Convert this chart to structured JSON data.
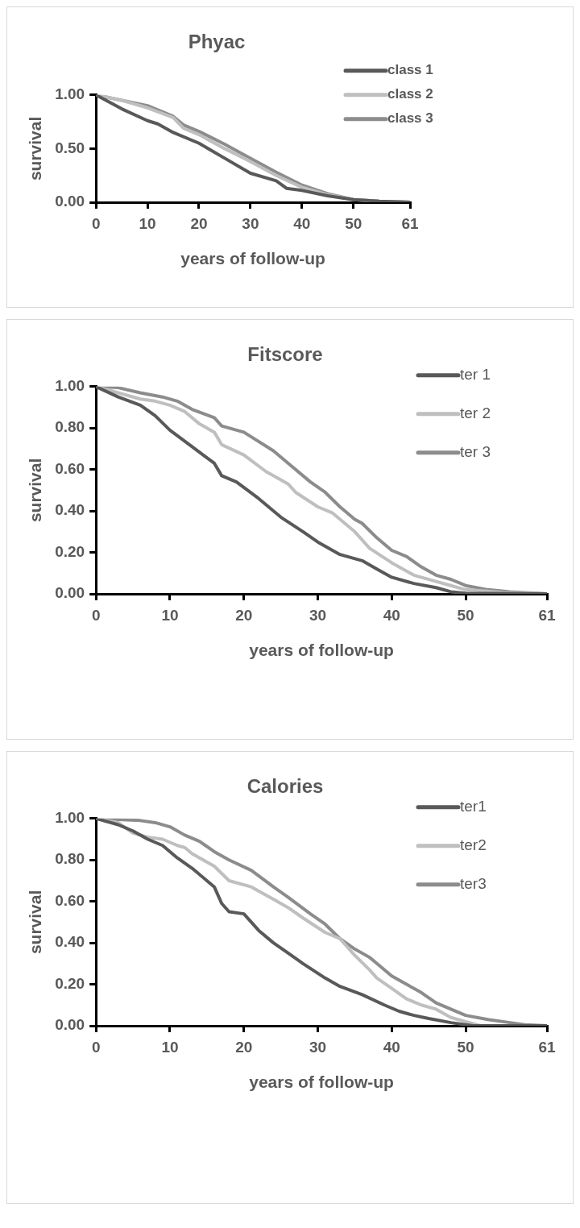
{
  "chart_data": [
    {
      "type": "line",
      "title": "Phyac",
      "xlabel": "years of follow-up",
      "ylabel": "survival",
      "xlim": [
        0,
        61
      ],
      "xticks": [
        0,
        10,
        20,
        30,
        40,
        50,
        61
      ],
      "ylim": [
        0,
        1
      ],
      "yticks": [
        {
          "value": 0,
          "label": "0.00"
        },
        {
          "value": 0.5,
          "label": "0.50"
        },
        {
          "value": 1,
          "label": "1.00"
        }
      ],
      "grid": false,
      "legend": "top right",
      "marker": "none",
      "series": [
        {
          "name": "class 1",
          "color": "#595959",
          "x": [
            0,
            5,
            10,
            12,
            15,
            20,
            25,
            30,
            35,
            37,
            40,
            45,
            50,
            55,
            61
          ],
          "values": [
            1.0,
            0.87,
            0.76,
            0.73,
            0.65,
            0.55,
            0.41,
            0.27,
            0.2,
            0.13,
            0.11,
            0.06,
            0.025,
            0.01,
            0.0
          ]
        },
        {
          "name": "class 2",
          "color": "#bfbfbf",
          "x": [
            0,
            5,
            10,
            15,
            17,
            20,
            25,
            30,
            35,
            40,
            45,
            50,
            55,
            61
          ],
          "values": [
            1.0,
            0.95,
            0.88,
            0.79,
            0.69,
            0.63,
            0.5,
            0.38,
            0.25,
            0.14,
            0.07,
            0.025,
            0.01,
            0.0
          ]
        },
        {
          "name": "class 3",
          "color": "#8c8c8c",
          "x": [
            0,
            5,
            10,
            15,
            17,
            20,
            25,
            30,
            35,
            40,
            45,
            50,
            55,
            61
          ],
          "values": [
            1.0,
            0.95,
            0.9,
            0.8,
            0.72,
            0.66,
            0.54,
            0.41,
            0.28,
            0.16,
            0.08,
            0.025,
            0.01,
            0.0
          ]
        }
      ]
    },
    {
      "type": "line",
      "title": "Fitscore",
      "xlabel": "years of follow-up",
      "ylabel": "survival",
      "xlim": [
        0,
        61
      ],
      "xticks": [
        0,
        10,
        20,
        30,
        40,
        50,
        61
      ],
      "ylim": [
        0,
        1
      ],
      "yticks": [
        {
          "value": 0,
          "label": "0.00"
        },
        {
          "value": 0.2,
          "label": "0.20"
        },
        {
          "value": 0.4,
          "label": "0.40"
        },
        {
          "value": 0.6,
          "label": "0.60"
        },
        {
          "value": 0.8,
          "label": "0.80"
        },
        {
          "value": 1,
          "label": "1.00"
        }
      ],
      "grid": false,
      "legend": "top right",
      "marker": "none",
      "series": [
        {
          "name": "ter 1",
          "color": "#595959",
          "x": [
            0,
            3,
            6,
            8,
            10,
            13,
            16,
            17,
            19,
            22,
            25,
            28,
            30,
            33,
            36,
            38,
            40,
            43,
            46,
            48,
            50,
            61
          ],
          "values": [
            1.0,
            0.95,
            0.91,
            0.86,
            0.79,
            0.71,
            0.63,
            0.57,
            0.54,
            0.46,
            0.37,
            0.3,
            0.25,
            0.19,
            0.16,
            0.12,
            0.08,
            0.05,
            0.03,
            0.01,
            0.003,
            0.0
          ]
        },
        {
          "name": "ter 2",
          "color": "#bfbfbf",
          "x": [
            0,
            3,
            6,
            8,
            10,
            12,
            14,
            16,
            17,
            20,
            23,
            25,
            26,
            27,
            30,
            32,
            35,
            37,
            40,
            43,
            46,
            48,
            50,
            55,
            61
          ],
          "values": [
            1.0,
            0.97,
            0.94,
            0.93,
            0.91,
            0.88,
            0.82,
            0.78,
            0.72,
            0.67,
            0.59,
            0.55,
            0.53,
            0.49,
            0.42,
            0.39,
            0.3,
            0.22,
            0.15,
            0.09,
            0.06,
            0.04,
            0.02,
            0.007,
            0.0
          ]
        },
        {
          "name": "ter 3",
          "color": "#8c8c8c",
          "x": [
            0,
            3,
            6,
            9,
            11,
            13,
            16,
            17,
            20,
            24,
            26,
            29,
            31,
            33,
            35,
            36,
            38,
            40,
            42,
            44,
            46,
            48,
            50,
            53,
            56,
            61
          ],
          "values": [
            1.0,
            0.995,
            0.97,
            0.95,
            0.93,
            0.89,
            0.85,
            0.81,
            0.78,
            0.69,
            0.63,
            0.54,
            0.49,
            0.42,
            0.36,
            0.34,
            0.27,
            0.21,
            0.18,
            0.13,
            0.09,
            0.07,
            0.04,
            0.02,
            0.01,
            0.0
          ]
        }
      ]
    },
    {
      "type": "line",
      "title": "Calories",
      "xlabel": "years of follow-up",
      "ylabel": "survival",
      "xlim": [
        0,
        61
      ],
      "xticks": [
        0,
        10,
        20,
        30,
        40,
        50,
        61
      ],
      "ylim": [
        0,
        1
      ],
      "yticks": [
        {
          "value": 0,
          "label": "0.00"
        },
        {
          "value": 0.2,
          "label": "0.20"
        },
        {
          "value": 0.4,
          "label": "0.40"
        },
        {
          "value": 0.6,
          "label": "0.60"
        },
        {
          "value": 0.8,
          "label": "0.80"
        },
        {
          "value": 1,
          "label": "1.00"
        }
      ],
      "grid": false,
      "legend": "top right",
      "marker": "none",
      "series": [
        {
          "name": "ter1",
          "color": "#595959",
          "x": [
            0,
            3,
            5,
            7,
            9,
            11,
            13,
            16,
            17,
            18,
            20,
            22,
            24,
            26,
            28,
            31,
            33,
            36,
            39,
            41,
            43,
            45,
            48,
            50,
            51,
            61
          ],
          "values": [
            1.0,
            0.97,
            0.94,
            0.9,
            0.87,
            0.81,
            0.76,
            0.67,
            0.59,
            0.55,
            0.54,
            0.46,
            0.4,
            0.35,
            0.3,
            0.23,
            0.19,
            0.15,
            0.1,
            0.07,
            0.05,
            0.035,
            0.015,
            0.005,
            0.0,
            0.0
          ]
        },
        {
          "name": "ter2",
          "color": "#bfbfbf",
          "x": [
            0,
            3,
            5,
            7,
            9,
            11,
            12,
            13,
            16,
            18,
            21,
            24,
            26,
            28,
            31,
            33,
            35,
            37,
            38,
            40,
            42,
            44,
            46,
            48,
            50,
            52,
            61
          ],
          "values": [
            1.0,
            0.98,
            0.93,
            0.91,
            0.9,
            0.87,
            0.86,
            0.83,
            0.77,
            0.7,
            0.67,
            0.61,
            0.57,
            0.52,
            0.45,
            0.42,
            0.34,
            0.27,
            0.23,
            0.18,
            0.13,
            0.1,
            0.08,
            0.04,
            0.02,
            0.0,
            0.0
          ]
        },
        {
          "name": "ter3",
          "color": "#8c8c8c",
          "x": [
            0,
            3,
            6,
            8,
            10,
            12,
            14,
            16,
            18,
            21,
            24,
            26,
            29,
            31,
            33,
            35,
            37,
            38,
            40,
            42,
            44,
            46,
            48,
            50,
            53,
            56,
            58,
            61
          ],
          "values": [
            1.0,
            0.995,
            0.99,
            0.98,
            0.96,
            0.92,
            0.89,
            0.84,
            0.8,
            0.75,
            0.67,
            0.62,
            0.54,
            0.49,
            0.42,
            0.37,
            0.33,
            0.3,
            0.24,
            0.2,
            0.16,
            0.11,
            0.08,
            0.05,
            0.03,
            0.015,
            0.005,
            0.0
          ]
        }
      ]
    }
  ]
}
